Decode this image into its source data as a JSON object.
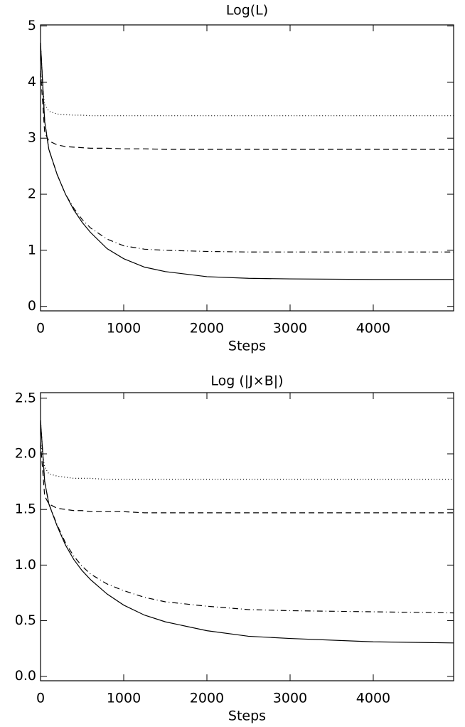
{
  "chart_data": [
    {
      "type": "line",
      "title": "Log(L)",
      "xlabel": "Steps",
      "x": [
        0,
        50,
        100,
        200,
        300,
        400,
        500,
        600,
        800,
        1000,
        1250,
        1500,
        2000,
        2500,
        3000,
        4000,
        4966
      ],
      "series": [
        {
          "color": "#000000",
          "dash": "solid",
          "values": [
            4.7,
            3.3,
            2.8,
            2.35,
            2.0,
            1.72,
            1.5,
            1.32,
            1.03,
            0.85,
            0.7,
            0.62,
            0.53,
            0.5,
            0.49,
            0.48,
            0.48
          ]
        },
        {
          "color": "#000000",
          "dash": "dashdot",
          "values": [
            4.7,
            3.3,
            2.8,
            2.35,
            2.0,
            1.75,
            1.55,
            1.4,
            1.2,
            1.08,
            1.02,
            1.0,
            0.98,
            0.97,
            0.97,
            0.97,
            0.97
          ]
        },
        {
          "color": "#000000",
          "dash": "dashed",
          "values": [
            4.2,
            3.1,
            2.95,
            2.88,
            2.85,
            2.84,
            2.83,
            2.82,
            2.82,
            2.81,
            2.81,
            2.8,
            2.8,
            2.8,
            2.8,
            2.8,
            2.8
          ]
        },
        {
          "color": "#000000",
          "dash": "dotted",
          "values": [
            4.2,
            3.6,
            3.48,
            3.43,
            3.42,
            3.41,
            3.41,
            3.4,
            3.4,
            3.4,
            3.4,
            3.4,
            3.4,
            3.4,
            3.4,
            3.4,
            3.4
          ]
        }
      ],
      "xlim": [
        0,
        4966
      ],
      "xticks": [
        0,
        1000,
        2000,
        3000,
        4000
      ],
      "ylim": [
        -0.08,
        5.02
      ],
      "yticks": [
        0,
        1,
        2,
        3,
        4,
        5
      ]
    },
    {
      "type": "line",
      "title": "Log (|J×B|)",
      "xlabel": "Steps",
      "x": [
        0,
        50,
        100,
        200,
        300,
        400,
        500,
        600,
        800,
        1000,
        1250,
        1500,
        2000,
        2500,
        3000,
        4000,
        4966
      ],
      "series": [
        {
          "color": "#000000",
          "dash": "solid",
          "values": [
            2.3,
            1.75,
            1.55,
            1.35,
            1.18,
            1.05,
            0.95,
            0.87,
            0.74,
            0.64,
            0.55,
            0.49,
            0.41,
            0.36,
            0.34,
            0.31,
            0.3
          ]
        },
        {
          "color": "#000000",
          "dash": "dashdot",
          "values": [
            2.3,
            1.75,
            1.55,
            1.36,
            1.2,
            1.08,
            0.99,
            0.92,
            0.83,
            0.77,
            0.71,
            0.67,
            0.63,
            0.6,
            0.59,
            0.58,
            0.57
          ]
        },
        {
          "color": "#000000",
          "dash": "dashed",
          "values": [
            2.1,
            1.62,
            1.55,
            1.51,
            1.5,
            1.49,
            1.49,
            1.48,
            1.48,
            1.48,
            1.47,
            1.47,
            1.47,
            1.47,
            1.47,
            1.47,
            1.47
          ]
        },
        {
          "color": "#000000",
          "dash": "dotted",
          "values": [
            2.1,
            1.88,
            1.82,
            1.8,
            1.79,
            1.78,
            1.78,
            1.78,
            1.77,
            1.77,
            1.77,
            1.77,
            1.77,
            1.77,
            1.77,
            1.77,
            1.77
          ]
        }
      ],
      "xlim": [
        0,
        4966
      ],
      "xticks": [
        0,
        1000,
        2000,
        3000,
        4000
      ],
      "ylim": [
        -0.04,
        2.55
      ],
      "yticks": [
        {
          "value": 0,
          "label": "0.0"
        },
        0.5,
        {
          "value": 1,
          "label": "1.0"
        },
        1.5,
        {
          "value": 2,
          "label": "2.0"
        },
        2.5
      ]
    }
  ]
}
